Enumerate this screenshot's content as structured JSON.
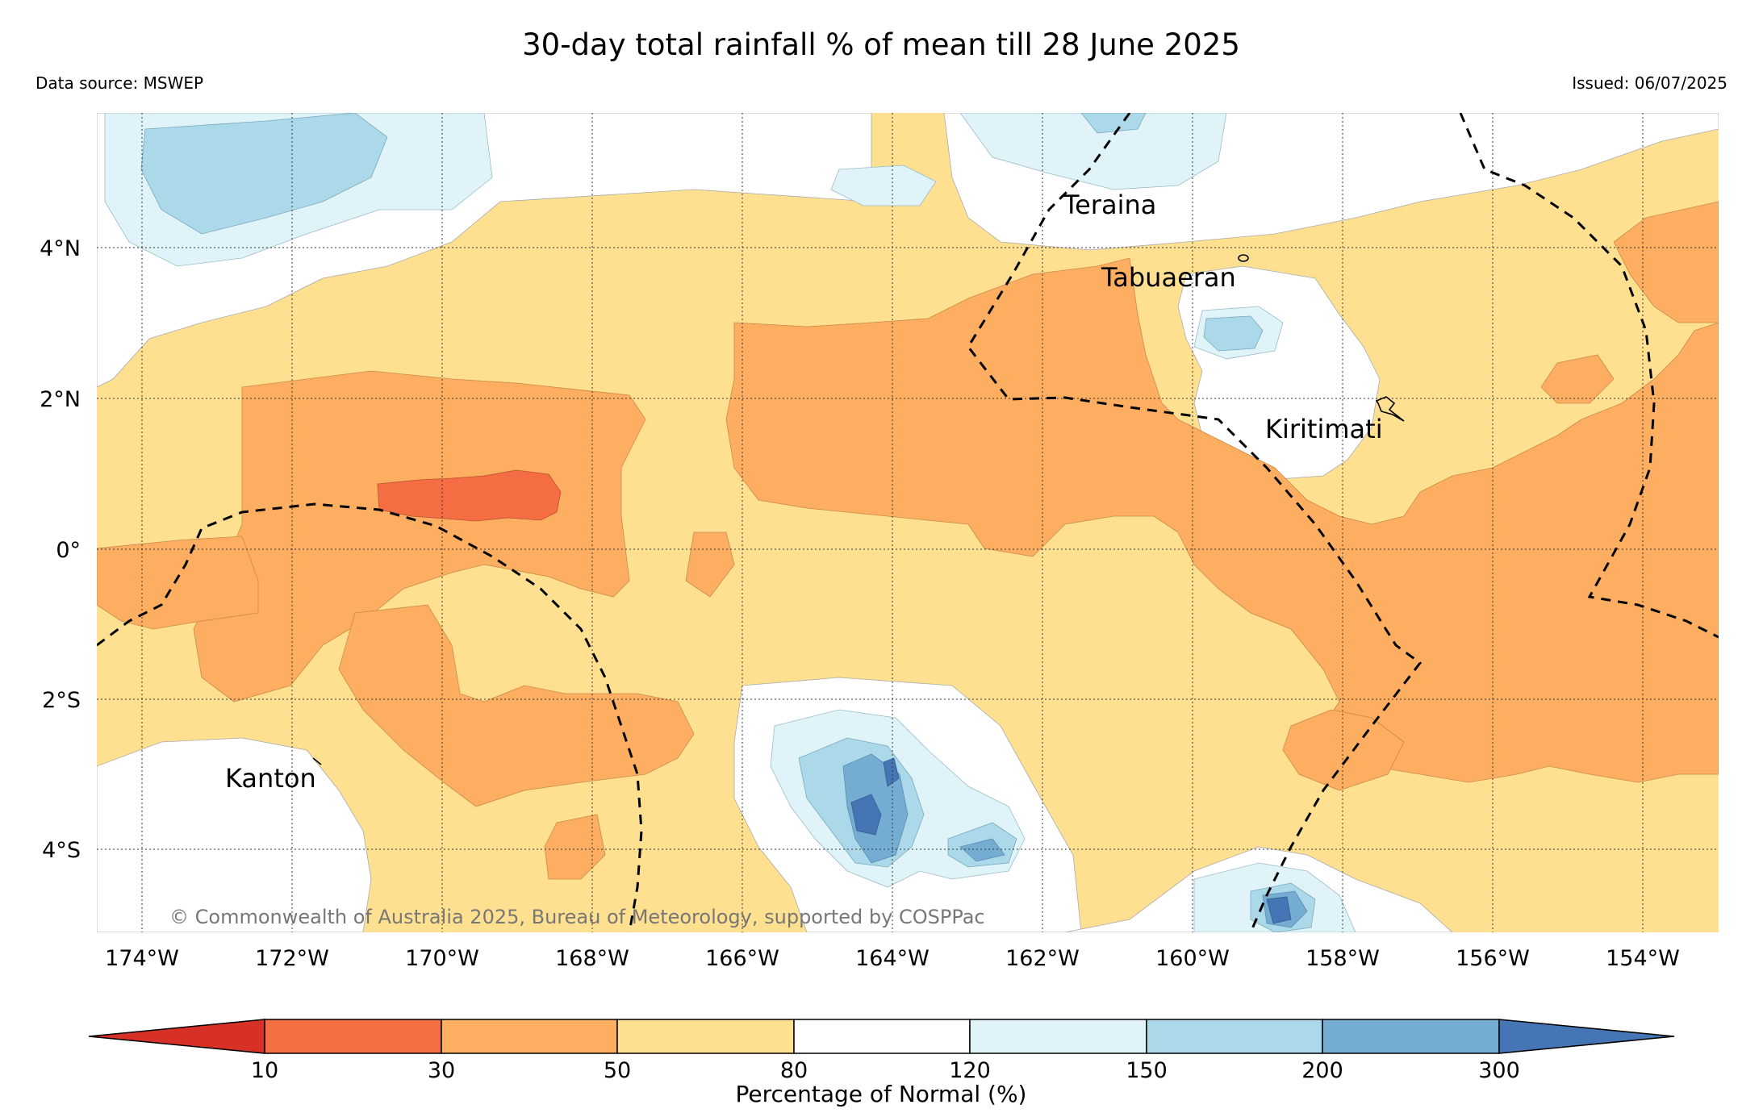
{
  "title": "30-day total rainfall % of mean till 28 June 2025",
  "source": "Data source: MSWEP",
  "issued": "Issued: 06/07/2025",
  "copyright": "© Commonwealth of Australia 2025, Bureau of Meteorology, supported by COSPPac",
  "map": {
    "lon_range": [
      "174.6°W",
      "153.0°W"
    ],
    "lat_range": [
      "5.1°S",
      "5.8°N"
    ],
    "gridlines": "dotted",
    "lon_ticks": [
      "174°W",
      "172°W",
      "170°W",
      "168°W",
      "166°W",
      "164°W",
      "162°W",
      "160°W",
      "158°W",
      "156°W",
      "154°W"
    ],
    "lat_ticks": [
      "4°N",
      "2°N",
      "0°",
      "2°S",
      "4°S"
    ],
    "places": [
      "Teraina",
      "Tabuaeran",
      "Kiritimati",
      "Kanton"
    ],
    "boundaries": "dashed EEZ lines"
  },
  "legend": {
    "label": "Percentage of Normal (%)",
    "ticks": [
      "10",
      "30",
      "50",
      "80",
      "120",
      "150",
      "200",
      "300"
    ],
    "bins": [
      {
        "range": "<10",
        "color": "#d73027"
      },
      {
        "range": "10-30",
        "color": "#f46d43"
      },
      {
        "range": "30-50",
        "color": "#fdae61"
      },
      {
        "range": "50-80",
        "color": "#fee090"
      },
      {
        "range": "80-120",
        "color": "#ffffff"
      },
      {
        "range": "120-150",
        "color": "#e0f3f8"
      },
      {
        "range": "150-200",
        "color": "#abd9e9"
      },
      {
        "range": "200-300",
        "color": "#74add1"
      },
      {
        "range": ">300",
        "color": "#4575b4"
      }
    ]
  }
}
